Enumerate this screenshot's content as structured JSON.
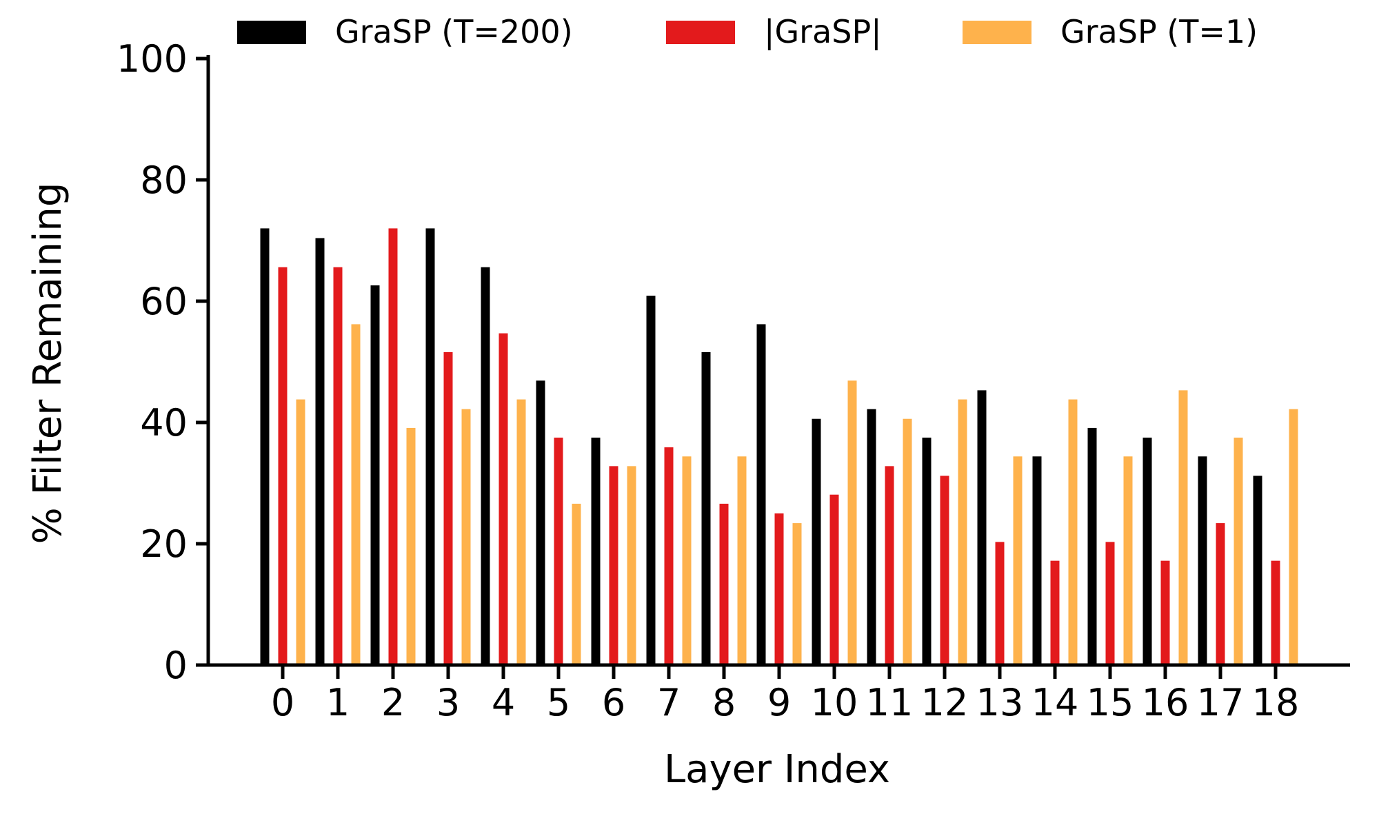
{
  "chart_data": {
    "type": "bar",
    "title": "",
    "xlabel": "Layer Index",
    "ylabel": "% Filter Remaining",
    "ylim": [
      0,
      100
    ],
    "yticks": [
      0,
      20,
      40,
      60,
      80,
      100
    ],
    "grid": false,
    "legend_position": "top",
    "categories": [
      "0",
      "1",
      "2",
      "3",
      "4",
      "5",
      "6",
      "7",
      "8",
      "9",
      "10",
      "11",
      "12",
      "13",
      "14",
      "15",
      "16",
      "17",
      "18"
    ],
    "series": [
      {
        "name": "GraSP (T=200)",
        "color": "#000000",
        "values": [
          72,
          70.4,
          62.6,
          72,
          65.6,
          46.9,
          37.5,
          60.9,
          51.6,
          56.2,
          40.6,
          42.2,
          37.5,
          45.3,
          34.4,
          39.1,
          37.5,
          34.4,
          31.2
        ]
      },
      {
        "name": "|GraSP|",
        "color": "#e31a1c",
        "values": [
          65.6,
          65.6,
          72,
          51.6,
          54.7,
          37.5,
          32.8,
          35.9,
          26.6,
          25,
          28.1,
          32.8,
          31.2,
          20.3,
          17.2,
          20.3,
          17.2,
          23.4,
          17.2
        ]
      },
      {
        "name": "GraSP (T=1)",
        "color": "#feb24c",
        "values": [
          43.8,
          56.2,
          39.1,
          42.2,
          43.8,
          26.6,
          32.8,
          34.4,
          34.4,
          23.4,
          46.9,
          40.6,
          43.8,
          34.4,
          43.8,
          34.4,
          45.3,
          37.5,
          42.2
        ]
      }
    ]
  }
}
